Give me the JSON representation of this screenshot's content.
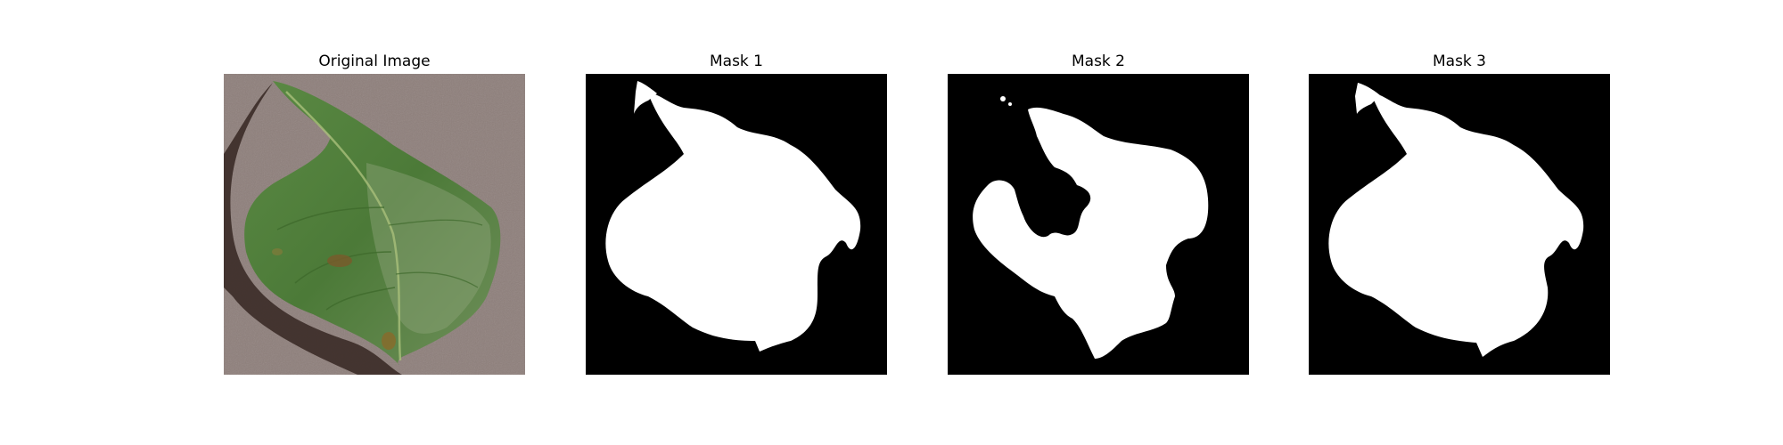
{
  "figure": {
    "panels": [
      {
        "title": "Original Image",
        "content": "leaf-photo"
      },
      {
        "title": "Mask 1",
        "content": "binary-mask"
      },
      {
        "title": "Mask 2",
        "content": "binary-mask"
      },
      {
        "title": "Mask 3",
        "content": "binary-mask"
      }
    ]
  },
  "colors": {
    "mask_background": "#000000",
    "mask_foreground": "#ffffff",
    "photo_background": "#8c7c78",
    "leaf_green": "#4f7d3c",
    "leaf_dark": "#2f5a25",
    "shadow": "#3a2a26"
  }
}
